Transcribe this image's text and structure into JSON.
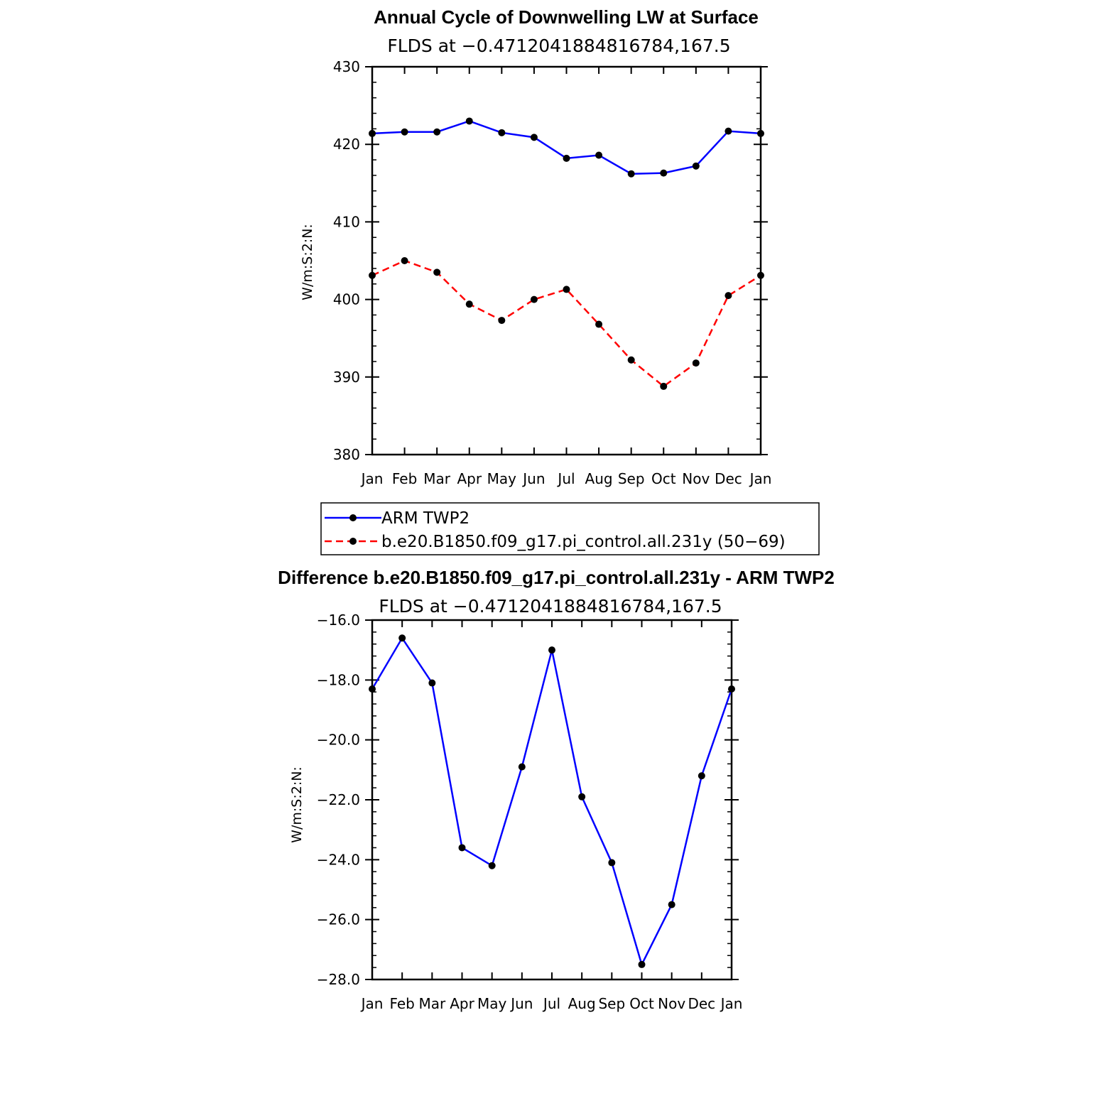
{
  "chart_data": [
    {
      "type": "line",
      "title": "Annual Cycle of Downwelling LW at Surface",
      "subtitle": "FLDS at −0.4712041884816784,167.5",
      "ylabel": "W/m:S:2:N:",
      "xlabel": "",
      "categories": [
        "Jan",
        "Feb",
        "Mar",
        "Apr",
        "May",
        "Jun",
        "Jul",
        "Aug",
        "Sep",
        "Oct",
        "Nov",
        "Dec",
        "Jan"
      ],
      "ylim": [
        380,
        430
      ],
      "yticks": [
        380,
        390,
        400,
        410,
        420,
        430
      ],
      "ytick_labels": [
        "380",
        "390",
        "400",
        "410",
        "420",
        "430"
      ],
      "series": [
        {
          "name": "ARM TWP2",
          "color": "#0000ff",
          "dash": "solid",
          "values": [
            421.4,
            421.6,
            421.6,
            423.0,
            421.5,
            420.9,
            418.2,
            418.6,
            416.2,
            416.3,
            417.2,
            421.7,
            421.4
          ]
        },
        {
          "name": "b.e20.B1850.f09_g17.pi_control.all.231y (50−69)",
          "color": "#ff0000",
          "dash": "dashed",
          "values": [
            403.1,
            405.0,
            403.5,
            399.4,
            397.3,
            400.0,
            401.3,
            396.8,
            392.2,
            388.8,
            391.8,
            400.5,
            403.1
          ]
        }
      ],
      "grid": false,
      "legend": "below"
    },
    {
      "type": "line",
      "title": "Difference b.e20.B1850.f09_g17.pi_control.all.231y - ARM TWP2",
      "subtitle": "FLDS at −0.4712041884816784,167.5",
      "ylabel": "W/m:S:2:N:",
      "xlabel": "",
      "categories": [
        "Jan",
        "Feb",
        "Mar",
        "Apr",
        "May",
        "Jun",
        "Jul",
        "Aug",
        "Sep",
        "Oct",
        "Nov",
        "Dec",
        "Jan"
      ],
      "ylim": [
        -28.0,
        -16.0
      ],
      "yticks": [
        -28,
        -26,
        -24,
        -22,
        -20,
        -18,
        -16
      ],
      "ytick_labels": [
        "−28.0",
        "−26.0",
        "−24.0",
        "−22.0",
        "−20.0",
        "−18.0",
        "−16.0"
      ],
      "series": [
        {
          "color": "#0000ff",
          "dash": "solid",
          "values": [
            -18.3,
            -16.6,
            -18.1,
            -23.6,
            -24.2,
            -20.9,
            -17.0,
            -21.9,
            -24.1,
            -27.5,
            -25.5,
            -21.2,
            -18.3
          ]
        }
      ],
      "grid": false,
      "legend": "none"
    }
  ],
  "colors": {
    "axis": "#000000",
    "marker": "#000000"
  }
}
